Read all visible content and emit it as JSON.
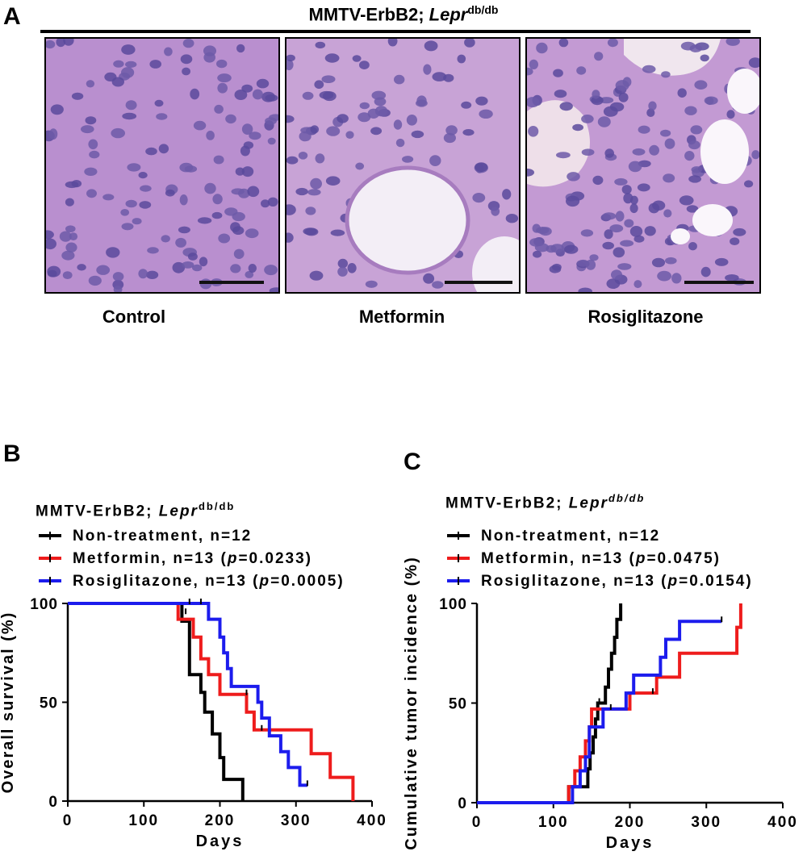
{
  "panel_a": {
    "letter": "A",
    "title_main": "MMTV-ErbB2; ",
    "title_gene": "Lepr",
    "title_sup": "db/db",
    "images": [
      {
        "label": "Control"
      },
      {
        "label": "Metformin"
      },
      {
        "label": "Rosiglitazone"
      }
    ]
  },
  "chart_data": [
    {
      "panel": "B",
      "type": "line",
      "title_main": "MMTV-ErbB2; ",
      "title_gene": "Lepr",
      "title_sup": "db/db",
      "xlabel": "Days",
      "ylabel": "Overall survival (%)",
      "xlim": [
        0,
        400
      ],
      "ylim": [
        0,
        100
      ],
      "xticks": [
        0,
        100,
        200,
        300,
        400
      ],
      "yticks": [
        0,
        50,
        100
      ],
      "legend_placement": "top-left",
      "series": [
        {
          "name": "Non-treatment, n=12",
          "color": "#000000",
          "pvalue": "",
          "steps": [
            [
              0,
              100
            ],
            [
              150,
              100
            ],
            [
              150,
              91
            ],
            [
              160,
              91
            ],
            [
              160,
              64
            ],
            [
              175,
              64
            ],
            [
              175,
              55
            ],
            [
              180,
              55
            ],
            [
              180,
              45
            ],
            [
              185,
              45
            ],
            [
              185,
              45
            ],
            [
              190,
              45
            ],
            [
              190,
              34
            ],
            [
              200,
              34
            ],
            [
              200,
              22
            ],
            [
              205,
              22
            ],
            [
              205,
              11
            ],
            [
              230,
              11
            ],
            [
              230,
              0
            ]
          ],
          "censored": [
            [
              155,
              95
            ]
          ]
        },
        {
          "name": "Metformin, n=13",
          "pvalue": "0.0233",
          "color": "#ee1c1c",
          "steps": [
            [
              0,
              100
            ],
            [
              145,
              100
            ],
            [
              145,
              92
            ],
            [
              165,
              92
            ],
            [
              165,
              83
            ],
            [
              175,
              83
            ],
            [
              175,
              72
            ],
            [
              185,
              72
            ],
            [
              185,
              64
            ],
            [
              200,
              64
            ],
            [
              200,
              54
            ],
            [
              235,
              54
            ],
            [
              235,
              45
            ],
            [
              245,
              45
            ],
            [
              245,
              36
            ],
            [
              310,
              36
            ],
            [
              310,
              36
            ],
            [
              320,
              36
            ],
            [
              320,
              24
            ],
            [
              345,
              24
            ],
            [
              345,
              12
            ],
            [
              375,
              12
            ],
            [
              375,
              0
            ]
          ],
          "censored": [
            [
              235,
              54
            ],
            [
              255,
              36
            ]
          ]
        },
        {
          "name": "Rosiglitazone, n=13",
          "pvalue": "0.0005",
          "color": "#1c1ced",
          "steps": [
            [
              0,
              100
            ],
            [
              150,
              100
            ],
            [
              150,
              100
            ],
            [
              185,
              100
            ],
            [
              185,
              92
            ],
            [
              200,
              92
            ],
            [
              200,
              83
            ],
            [
              205,
              83
            ],
            [
              205,
              75
            ],
            [
              210,
              75
            ],
            [
              210,
              67
            ],
            [
              215,
              67
            ],
            [
              215,
              58
            ],
            [
              250,
              58
            ],
            [
              250,
              50
            ],
            [
              255,
              50
            ],
            [
              255,
              42
            ],
            [
              265,
              42
            ],
            [
              265,
              33
            ],
            [
              280,
              33
            ],
            [
              280,
              25
            ],
            [
              290,
              25
            ],
            [
              290,
              17
            ],
            [
              305,
              17
            ],
            [
              305,
              8
            ],
            [
              315,
              8
            ]
          ],
          "censored": [
            [
              160,
              100
            ],
            [
              175,
              100
            ],
            [
              315,
              8
            ]
          ]
        }
      ]
    },
    {
      "panel": "C",
      "type": "line",
      "title_main": "MMTV-ErbB2; ",
      "title_gene": "Lepr",
      "title_sup": "db/db",
      "xlabel": "Days",
      "ylabel": "Cumulative tumor incidence (%)",
      "xlim": [
        0,
        400
      ],
      "ylim": [
        0,
        100
      ],
      "xticks": [
        0,
        100,
        200,
        300,
        400
      ],
      "yticks": [
        0,
        50,
        100
      ],
      "legend_placement": "top-left",
      "series": [
        {
          "name": "Non-treatment, n=12",
          "color": "#000000",
          "pvalue": "",
          "steps": [
            [
              0,
              0
            ],
            [
              120,
              0
            ],
            [
              120,
              8
            ],
            [
              145,
              8
            ],
            [
              145,
              17
            ],
            [
              148,
              17
            ],
            [
              148,
              25
            ],
            [
              152,
              25
            ],
            [
              152,
              33
            ],
            [
              155,
              33
            ],
            [
              155,
              42
            ],
            [
              158,
              42
            ],
            [
              158,
              50
            ],
            [
              168,
              50
            ],
            [
              168,
              58
            ],
            [
              172,
              58
            ],
            [
              172,
              67
            ],
            [
              176,
              67
            ],
            [
              176,
              75
            ],
            [
              180,
              75
            ],
            [
              180,
              83
            ],
            [
              183,
              83
            ],
            [
              183,
              92
            ],
            [
              188,
              92
            ],
            [
              188,
              100
            ]
          ],
          "censored": [
            [
              160,
              50
            ]
          ]
        },
        {
          "name": "Metformin, n=13",
          "pvalue": "0.0475",
          "color": "#ee1c1c",
          "steps": [
            [
              0,
              0
            ],
            [
              120,
              0
            ],
            [
              120,
              8
            ],
            [
              128,
              8
            ],
            [
              128,
              16
            ],
            [
              135,
              16
            ],
            [
              135,
              23
            ],
            [
              142,
              23
            ],
            [
              142,
              31
            ],
            [
              147,
              31
            ],
            [
              147,
              38
            ],
            [
              150,
              38
            ],
            [
              150,
              47
            ],
            [
              200,
              47
            ],
            [
              200,
              55
            ],
            [
              235,
              55
            ],
            [
              235,
              63
            ],
            [
              265,
              63
            ],
            [
              265,
              75
            ],
            [
              340,
              75
            ],
            [
              340,
              88
            ],
            [
              345,
              88
            ],
            [
              345,
              100
            ]
          ],
          "censored": [
            [
              230,
              55
            ]
          ]
        },
        {
          "name": "Rosiglitazone, n=13",
          "pvalue": "0.0154",
          "color": "#1c1ced",
          "steps": [
            [
              0,
              0
            ],
            [
              125,
              0
            ],
            [
              125,
              8
            ],
            [
              135,
              8
            ],
            [
              135,
              16
            ],
            [
              142,
              16
            ],
            [
              142,
              23
            ],
            [
              147,
              23
            ],
            [
              147,
              38
            ],
            [
              165,
              38
            ],
            [
              165,
              47
            ],
            [
              195,
              47
            ],
            [
              195,
              55
            ],
            [
              205,
              55
            ],
            [
              205,
              64
            ],
            [
              240,
              64
            ],
            [
              240,
              73
            ],
            [
              247,
              73
            ],
            [
              247,
              82
            ],
            [
              265,
              82
            ],
            [
              265,
              91
            ],
            [
              320,
              91
            ]
          ],
          "censored": [
            [
              175,
              47
            ],
            [
              320,
              91
            ]
          ]
        }
      ]
    }
  ]
}
